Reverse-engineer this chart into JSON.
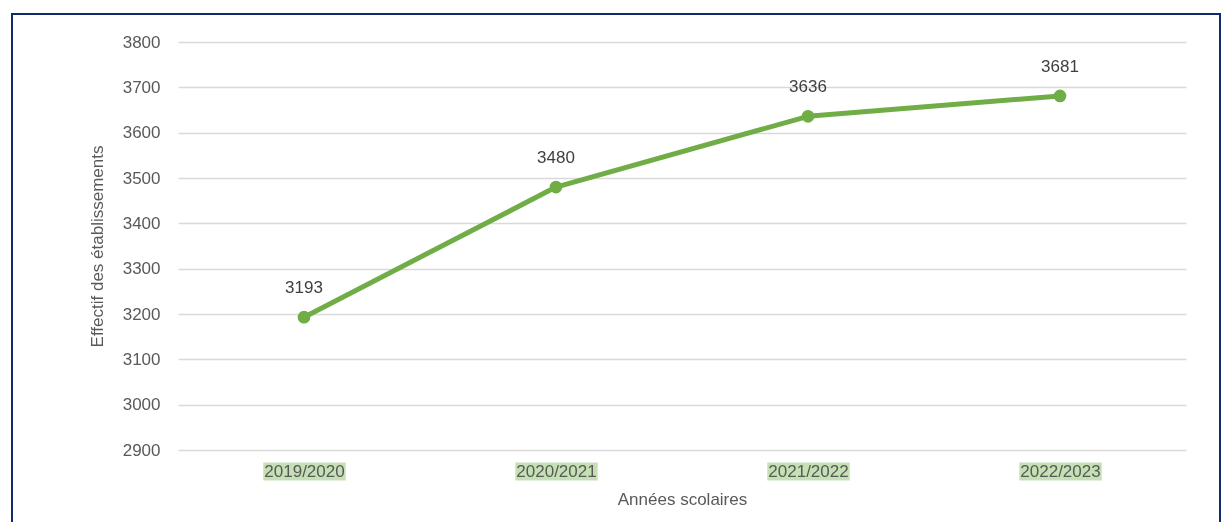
{
  "chart_data": {
    "type": "line",
    "xlabel": "Années scolaires",
    "ylabel": "Effectif des établissements",
    "categories": [
      "2019/2020",
      "2020/2021",
      "2021/2022",
      "2022/2023"
    ],
    "series": [
      {
        "color": "#70ad47",
        "values": [
          3193,
          3480,
          3636,
          3681
        ]
      }
    ],
    "ylim": [
      2900,
      3800
    ],
    "yticks": [
      2900,
      3000,
      3100,
      3200,
      3300,
      3400,
      3500,
      3600,
      3700,
      3800
    ],
    "grid": "y",
    "marker": "circle",
    "data_labels": true
  }
}
